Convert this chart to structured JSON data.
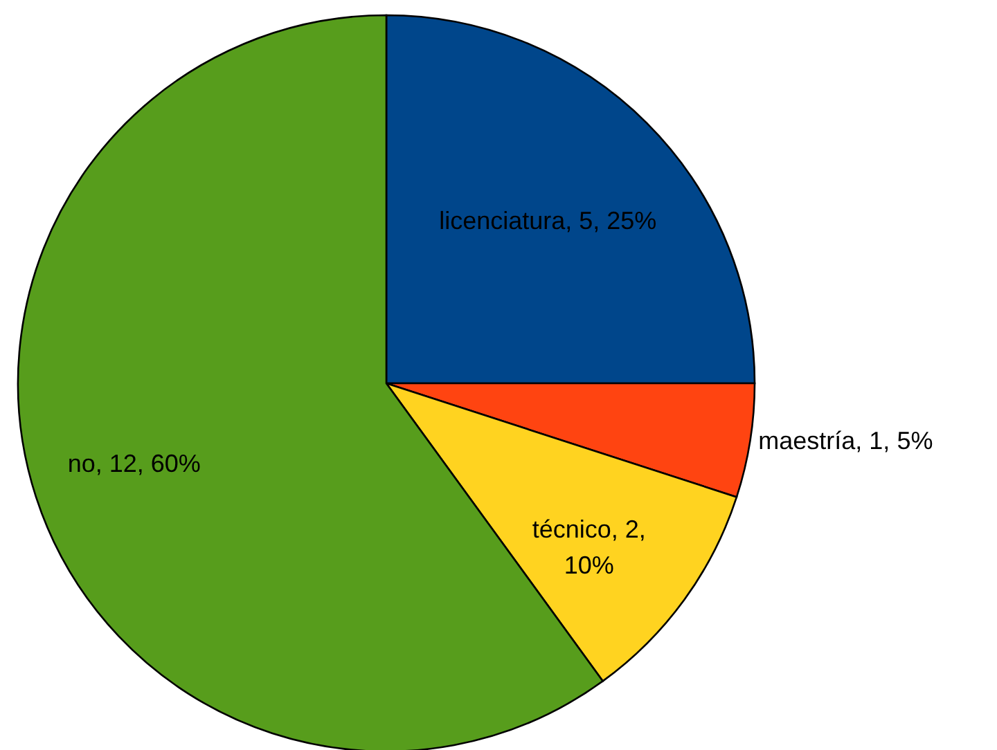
{
  "chart_data": {
    "type": "pie",
    "categories": [
      "licenciatura",
      "maestría",
      "técnico",
      "no"
    ],
    "values": [
      5,
      1,
      2,
      12
    ],
    "colors": [
      "#00468b",
      "#ff4411",
      "#ffd320",
      "#579d1c"
    ],
    "value_labels": [
      "5, 25%",
      "1, 5%",
      "2, 10%",
      "12, 60%"
    ]
  }
}
